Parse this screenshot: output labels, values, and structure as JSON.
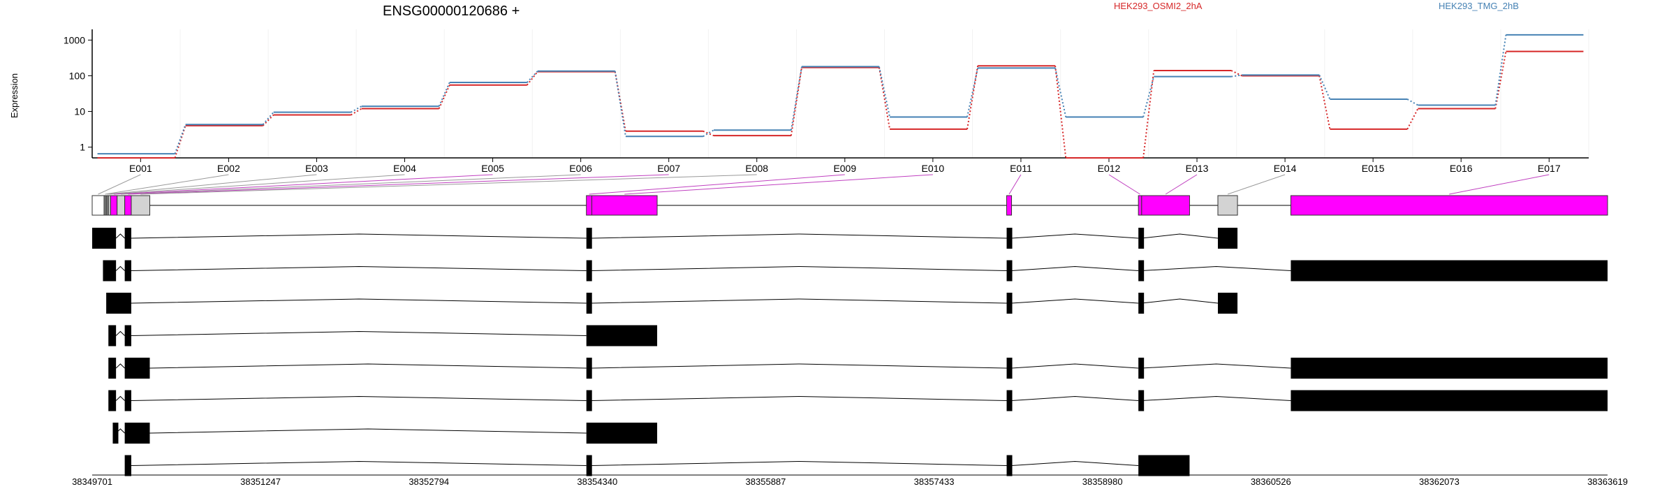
{
  "chart_data": {
    "type": "line",
    "title": "ENSG00000120686 +",
    "ylabel": "Expression",
    "yscale": "log",
    "yticks": [
      "1",
      "10",
      "100",
      "1000"
    ],
    "ylim": [
      0.5,
      2000
    ],
    "x": [
      "E001",
      "E002",
      "E003",
      "E004",
      "E005",
      "E006",
      "E007",
      "E008",
      "E009",
      "E010",
      "E011",
      "E012",
      "E013",
      "E014",
      "E015",
      "E016",
      "E017"
    ],
    "series": [
      {
        "name": "HEK293_OSMI2_2hA",
        "color": "#d62728",
        "values": [
          0.5,
          4,
          8,
          12,
          55,
          130,
          2.8,
          2.1,
          170,
          3.2,
          190,
          0.5,
          140,
          100,
          3.2,
          12,
          480
        ]
      },
      {
        "name": "HEK293_TMG_2hB",
        "color": "#4682b4",
        "values": [
          0.65,
          4.3,
          9.5,
          14,
          65,
          135,
          2,
          3,
          180,
          7,
          165,
          7,
          95,
          105,
          22,
          15,
          1400
        ]
      }
    ],
    "genomic_axis": {
      "range": [
        38349701,
        38363619
      ],
      "ticks": [
        "38349701",
        "38351247",
        "38352794",
        "38354340",
        "38355887",
        "38357433",
        "38358980",
        "38360526",
        "38362073",
        "38363619"
      ]
    },
    "gene_model": [
      {
        "id": "E001",
        "start": 38349701,
        "end": 38349810,
        "fill": "#ffffff"
      },
      {
        "id": "E002",
        "start": 38349810,
        "end": 38349830,
        "fill": "#808080"
      },
      {
        "id": "E003",
        "start": 38349830,
        "end": 38349850,
        "fill": "#808080"
      },
      {
        "id": "E004",
        "start": 38349850,
        "end": 38349870,
        "fill": "#d3d3d3"
      },
      {
        "id": "E005",
        "start": 38349870,
        "end": 38349930,
        "fill": "#ff00ff"
      },
      {
        "id": "E006",
        "start": 38349930,
        "end": 38350000,
        "fill": "#d3d3d3"
      },
      {
        "id": "E007",
        "start": 38350000,
        "end": 38350060,
        "fill": "#ff00ff"
      },
      {
        "id": "E008",
        "start": 38350060,
        "end": 38350230,
        "fill": "#d3d3d3"
      },
      {
        "id": "E009",
        "start": 38354240,
        "end": 38354290,
        "fill": "#ff00ff"
      },
      {
        "id": "E010",
        "start": 38354290,
        "end": 38354890,
        "fill": "#ff00ff"
      },
      {
        "id": "E011",
        "start": 38358100,
        "end": 38358145,
        "fill": "#ff00ff"
      },
      {
        "id": "E012",
        "start": 38359310,
        "end": 38359340,
        "fill": "#ff00ff"
      },
      {
        "id": "E013",
        "start": 38359340,
        "end": 38359780,
        "fill": "#ff00ff"
      },
      {
        "id": "E014",
        "start": 38360040,
        "end": 38360220,
        "fill": "#d3d3d3"
      },
      {
        "id": "E017",
        "start": 38360710,
        "end": 38363619,
        "fill": "#ff00ff"
      }
    ],
    "transcripts": [
      [
        [
          38349701,
          38349920
        ],
        [
          38350000,
          38350060
        ],
        [
          38354240,
          38354290
        ],
        [
          38358100,
          38358145
        ],
        [
          38359310,
          38359340
        ],
        [
          38360040,
          38360220
        ]
      ],
      [
        [
          38349800,
          38349920
        ],
        [
          38350000,
          38350060
        ],
        [
          38354240,
          38354290
        ],
        [
          38358100,
          38358145
        ],
        [
          38359310,
          38359340
        ],
        [
          38360710,
          38363619
        ]
      ],
      [
        [
          38349830,
          38350060
        ],
        [
          38354240,
          38354290
        ],
        [
          38358100,
          38358145
        ],
        [
          38359310,
          38359340
        ],
        [
          38360040,
          38360220
        ]
      ],
      [
        [
          38349850,
          38349920
        ],
        [
          38350000,
          38350060
        ],
        [
          38354240,
          38354890
        ]
      ],
      [
        [
          38349850,
          38349920
        ],
        [
          38350000,
          38350230
        ],
        [
          38354240,
          38354290
        ],
        [
          38358100,
          38358145
        ],
        [
          38359310,
          38359340
        ],
        [
          38360710,
          38363619
        ]
      ],
      [
        [
          38349850,
          38349920
        ],
        [
          38350000,
          38350060
        ],
        [
          38354240,
          38354290
        ],
        [
          38358100,
          38358145
        ],
        [
          38359310,
          38359340
        ],
        [
          38360710,
          38363619
        ]
      ],
      [
        [
          38349890,
          38349920
        ],
        [
          38350000,
          38350230
        ],
        [
          38354240,
          38354890
        ]
      ],
      [
        [
          38350000,
          38350060
        ],
        [
          38354240,
          38354290
        ],
        [
          38358100,
          38358145
        ],
        [
          38359310,
          38359780
        ]
      ]
    ]
  }
}
